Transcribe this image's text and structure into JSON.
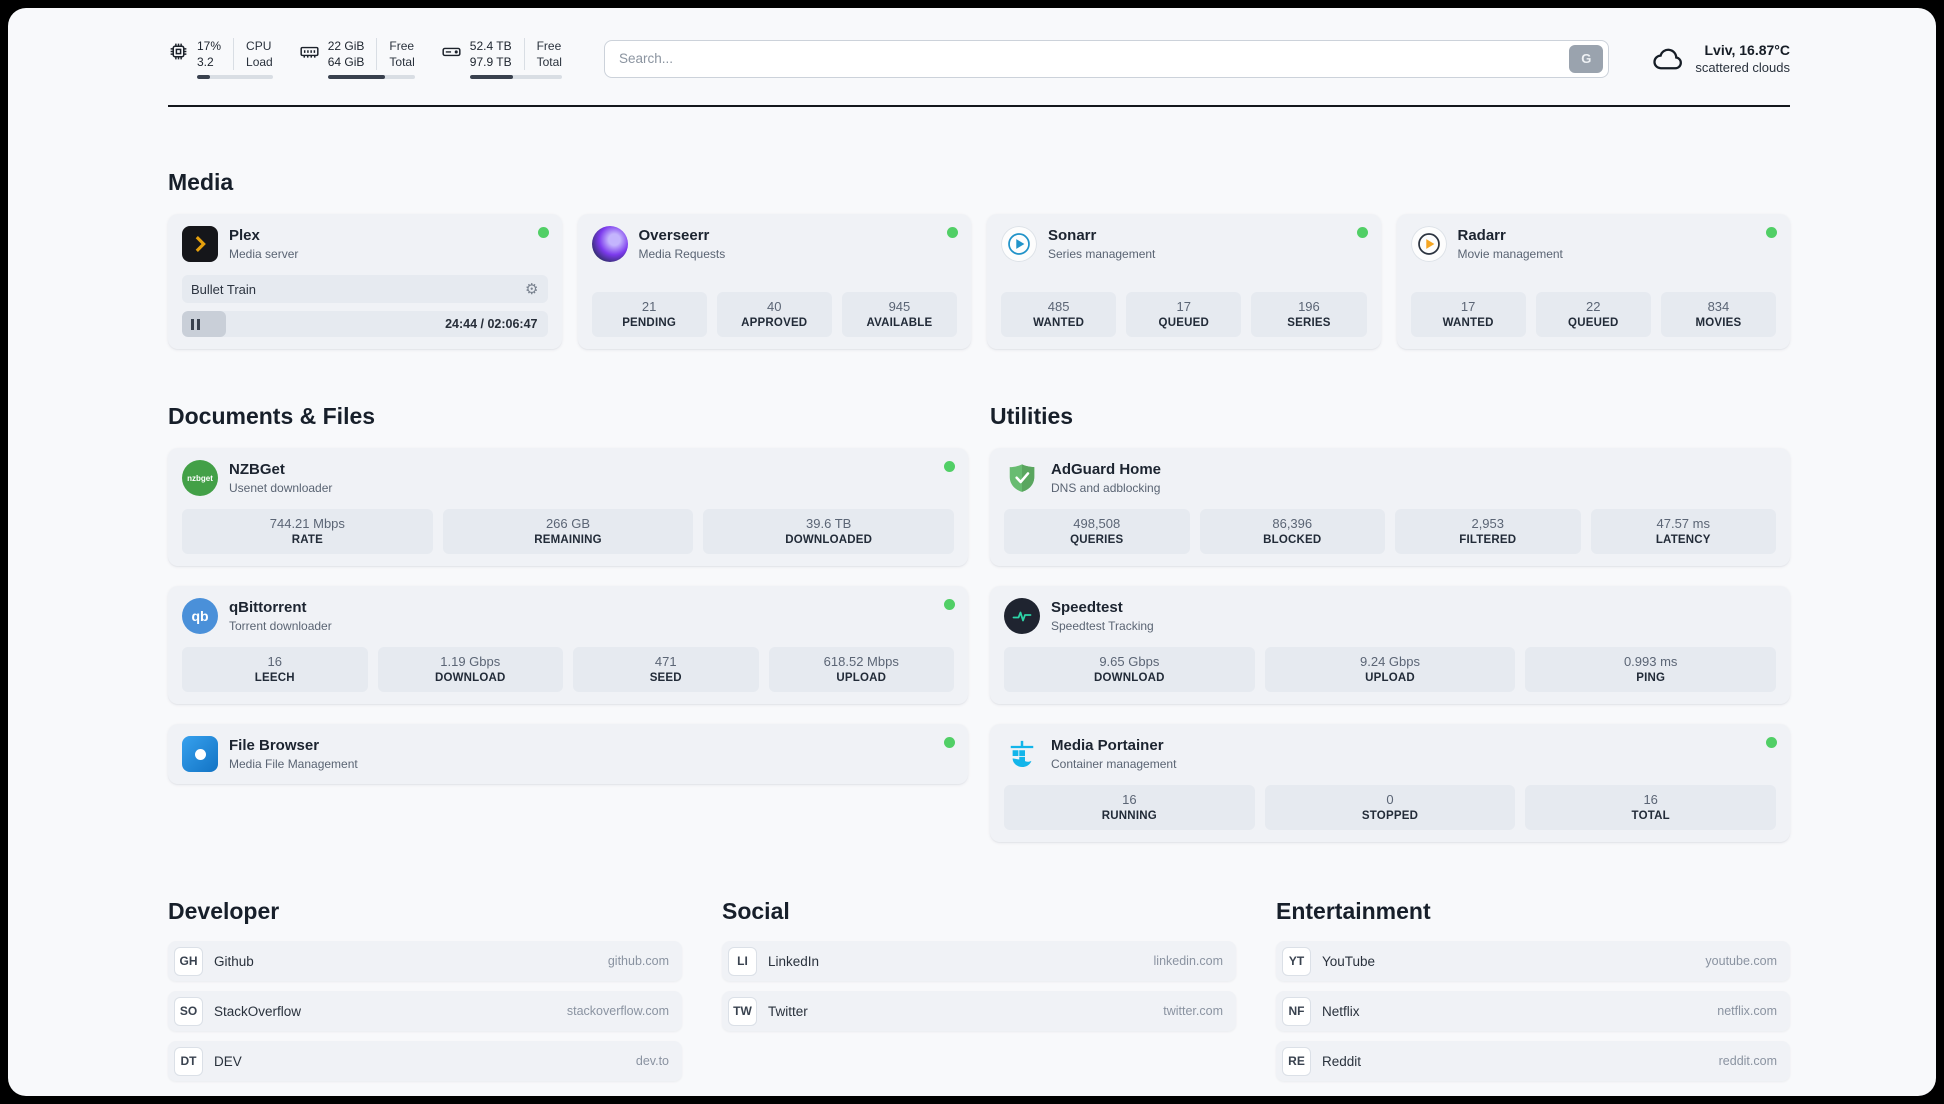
{
  "header": {
    "cpu": {
      "value_top": "17%",
      "value_bottom": "3.2",
      "label_top": "CPU",
      "label_bottom": "Load",
      "progress": 17
    },
    "ram": {
      "value_top": "22 GiB",
      "value_bottom": "64 GiB",
      "label_top": "Free",
      "label_bottom": "Total",
      "progress": 66
    },
    "disk": {
      "value_top": "52.4 TB",
      "value_bottom": "97.9 TB",
      "label_top": "Free",
      "label_bottom": "Total",
      "progress": 47
    },
    "search": {
      "placeholder": "Search...",
      "button_label": "G"
    },
    "weather": {
      "location": "Lviv, 16.87°C",
      "condition": "scattered clouds"
    }
  },
  "sections": {
    "media": "Media",
    "documents": "Documents & Files",
    "utilities": "Utilities",
    "developer": "Developer",
    "social": "Social",
    "entertainment": "Entertainment"
  },
  "media": {
    "plex": {
      "name": "Plex",
      "subtitle": "Media server",
      "now_playing": "Bullet Train",
      "time": "24:44 / 02:06:47"
    },
    "overseerr": {
      "name": "Overseerr",
      "subtitle": "Media Requests",
      "stats": [
        {
          "value": "21",
          "label": "PENDING"
        },
        {
          "value": "40",
          "label": "APPROVED"
        },
        {
          "value": "945",
          "label": "AVAILABLE"
        }
      ]
    },
    "sonarr": {
      "name": "Sonarr",
      "subtitle": "Series management",
      "stats": [
        {
          "value": "485",
          "label": "WANTED"
        },
        {
          "value": "17",
          "label": "QUEUED"
        },
        {
          "value": "196",
          "label": "SERIES"
        }
      ]
    },
    "radarr": {
      "name": "Radarr",
      "subtitle": "Movie management",
      "stats": [
        {
          "value": "17",
          "label": "WANTED"
        },
        {
          "value": "22",
          "label": "QUEUED"
        },
        {
          "value": "834",
          "label": "MOVIES"
        }
      ]
    }
  },
  "documents": {
    "nzbget": {
      "name": "NZBGet",
      "subtitle": "Usenet downloader",
      "icon_label": "nzbget",
      "stats": [
        {
          "value": "744.21 Mbps",
          "label": "RATE"
        },
        {
          "value": "266 GB",
          "label": "REMAINING"
        },
        {
          "value": "39.6 TB",
          "label": "DOWNLOADED"
        }
      ]
    },
    "qbittorrent": {
      "name": "qBittorrent",
      "subtitle": "Torrent downloader",
      "icon_label": "qb",
      "stats": [
        {
          "value": "16",
          "label": "LEECH"
        },
        {
          "value": "1.19 Gbps",
          "label": "DOWNLOAD"
        },
        {
          "value": "471",
          "label": "SEED"
        },
        {
          "value": "618.52 Mbps",
          "label": "UPLOAD"
        }
      ]
    },
    "filebrowser": {
      "name": "File Browser",
      "subtitle": "Media File Management"
    }
  },
  "utilities": {
    "adguard": {
      "name": "AdGuard Home",
      "subtitle": "DNS and adblocking",
      "stats": [
        {
          "value": "498,508",
          "label": "QUERIES"
        },
        {
          "value": "86,396",
          "label": "BLOCKED"
        },
        {
          "value": "2,953",
          "label": "FILTERED"
        },
        {
          "value": "47.57 ms",
          "label": "LATENCY"
        }
      ]
    },
    "speedtest": {
      "name": "Speedtest",
      "subtitle": "Speedtest Tracking",
      "stats": [
        {
          "value": "9.65 Gbps",
          "label": "DOWNLOAD"
        },
        {
          "value": "9.24 Gbps",
          "label": "UPLOAD"
        },
        {
          "value": "0.993 ms",
          "label": "PING"
        }
      ]
    },
    "portainer": {
      "name": "Media Portainer",
      "subtitle": "Container management",
      "stats": [
        {
          "value": "16",
          "label": "RUNNING"
        },
        {
          "value": "0",
          "label": "STOPPED"
        },
        {
          "value": "16",
          "label": "TOTAL"
        }
      ]
    }
  },
  "bookmarks": {
    "developer": [
      {
        "icon": "GH",
        "name": "Github",
        "url": "github.com"
      },
      {
        "icon": "SO",
        "name": "StackOverflow",
        "url": "stackoverflow.com"
      },
      {
        "icon": "DT",
        "name": "DEV",
        "url": "dev.to"
      }
    ],
    "social": [
      {
        "icon": "LI",
        "name": "LinkedIn",
        "url": "linkedin.com"
      },
      {
        "icon": "TW",
        "name": "Twitter",
        "url": "twitter.com"
      }
    ],
    "entertainment": [
      {
        "icon": "YT",
        "name": "YouTube",
        "url": "youtube.com"
      },
      {
        "icon": "NF",
        "name": "Netflix",
        "url": "netflix.com"
      },
      {
        "icon": "RE",
        "name": "Reddit",
        "url": "reddit.com"
      }
    ]
  }
}
